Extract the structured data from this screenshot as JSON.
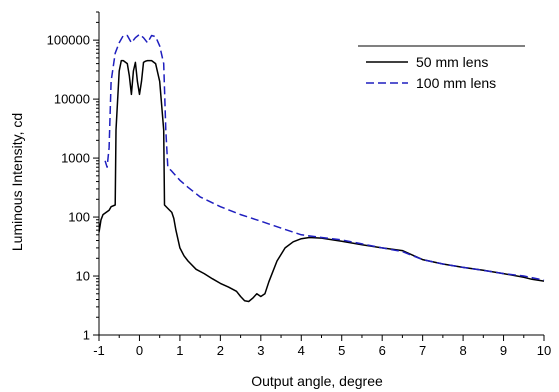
{
  "chart_data": {
    "type": "line",
    "title": "",
    "xlabel": "Output angle, degree",
    "ylabel": "Luminous Intensity, cd",
    "xlim": [
      -1,
      10
    ],
    "ylim": [
      1,
      300000
    ],
    "yscale": "log",
    "grid": false,
    "legend_position": "top-right",
    "x_ticks": [
      -1,
      0,
      1,
      2,
      3,
      4,
      5,
      6,
      7,
      8,
      9,
      10
    ],
    "x_tick_labels": [
      "-1",
      "0",
      "1",
      "2",
      "3",
      "4",
      "5",
      "6",
      "7",
      "8",
      "9",
      "10"
    ],
    "y_ticks": [
      1,
      10,
      100,
      1000,
      10000,
      100000
    ],
    "y_tick_labels": [
      "1",
      "10",
      "100",
      "1000",
      "10000",
      "100000"
    ],
    "series": [
      {
        "name": "50 mm lens",
        "color": "#000000",
        "style": "solid",
        "x": [
          -1.0,
          -0.95,
          -0.9,
          -0.75,
          -0.7,
          -0.6,
          -0.58,
          -0.5,
          -0.45,
          -0.4,
          -0.3,
          -0.25,
          -0.2,
          -0.15,
          -0.1,
          -0.05,
          0.0,
          0.05,
          0.1,
          0.15,
          0.2,
          0.3,
          0.4,
          0.5,
          0.6,
          0.62,
          0.7,
          0.8,
          0.85,
          0.9,
          1.0,
          1.1,
          1.2,
          1.4,
          1.6,
          1.8,
          2.0,
          2.2,
          2.4,
          2.5,
          2.6,
          2.7,
          2.8,
          2.9,
          3.0,
          3.1,
          3.2,
          3.4,
          3.6,
          3.8,
          4.0,
          4.2,
          4.5,
          5.0,
          5.5,
          6.0,
          6.5,
          7.0,
          7.5,
          8.0,
          8.5,
          9.0,
          9.5,
          9.7,
          10.0
        ],
        "y": [
          55,
          90,
          110,
          130,
          150,
          160,
          3000,
          30000,
          45000,
          45000,
          40000,
          25000,
          12000,
          30000,
          42000,
          20000,
          12000,
          20000,
          42000,
          44000,
          45000,
          45000,
          40000,
          20000,
          3000,
          160,
          140,
          120,
          95,
          60,
          30,
          22,
          18,
          13,
          11,
          9,
          7.5,
          6.5,
          5.5,
          4.5,
          3.8,
          3.7,
          4.2,
          5.0,
          4.5,
          5.0,
          8.0,
          18,
          30,
          38,
          43,
          45,
          44,
          39,
          34,
          30,
          27,
          19,
          16,
          14,
          12.5,
          11,
          9.5,
          8.8,
          8.2
        ]
      },
      {
        "name": "100 mm lens",
        "color": "#1f1fbf",
        "style": "dashed",
        "x": [
          -0.85,
          -0.8,
          -0.75,
          -0.7,
          -0.6,
          -0.5,
          -0.4,
          -0.3,
          -0.2,
          -0.1,
          0.0,
          0.1,
          0.2,
          0.3,
          0.4,
          0.5,
          0.6,
          0.65,
          0.7,
          0.8,
          1.0,
          1.2,
          1.5,
          2.0,
          2.5,
          3.0,
          3.5,
          4.0,
          4.5,
          5.0,
          5.5,
          6.0,
          6.5,
          7.0,
          7.5,
          8.0,
          8.5,
          9.0,
          9.5,
          10.0
        ],
        "y": [
          900,
          700,
          1500,
          20000,
          60000,
          90000,
          120000,
          120000,
          90000,
          110000,
          125000,
          110000,
          90000,
          120000,
          115000,
          80000,
          40000,
          3000,
          700,
          600,
          420,
          320,
          220,
          150,
          110,
          85,
          65,
          50,
          45,
          41,
          35,
          30,
          26,
          19,
          16,
          14,
          12.5,
          11,
          10,
          8.5
        ]
      }
    ]
  }
}
